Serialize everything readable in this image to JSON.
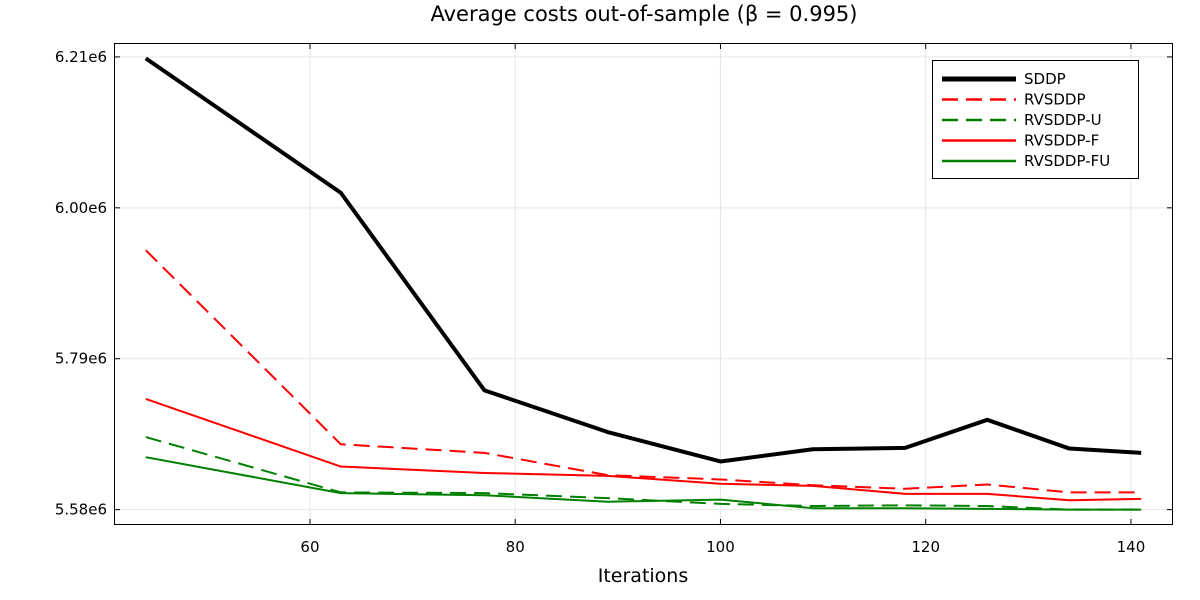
{
  "chart_data": {
    "type": "line",
    "title": "Average costs out-of-sample (β = 0.995)",
    "xlabel": "Iterations",
    "ylabel": "",
    "xlim": [
      41,
      144
    ],
    "ylim": [
      5560000,
      6228000
    ],
    "xticks": [
      60,
      80,
      100,
      120,
      140
    ],
    "xtick_labels": [
      "60",
      "80",
      "100",
      "120",
      "140"
    ],
    "yticks": [
      5580000,
      5790000,
      6000000,
      6210000
    ],
    "ytick_labels": [
      "5.58e6",
      "5.79e6",
      "6.00e6",
      "6.21e6"
    ],
    "grid": true,
    "legend_position": "top-right",
    "x": [
      44,
      63,
      77,
      89,
      100,
      109,
      118,
      126,
      134,
      141
    ],
    "series": [
      {
        "name": "SDDP",
        "color": "#000000",
        "dash": "solid",
        "width": "thick",
        "values": [
          6208000,
          6021000,
          5746000,
          5688000,
          5647000,
          5664000,
          5666000,
          5705000,
          5665000,
          5659000
        ]
      },
      {
        "name": "RVSDDP",
        "color": "#ff0000",
        "dash": "dashed",
        "width": "normal",
        "values": [
          5941000,
          5671000,
          5659000,
          5628000,
          5622000,
          5614000,
          5609000,
          5615000,
          5604000,
          5604000
        ]
      },
      {
        "name": "RVSDDP-U",
        "color": "#008000",
        "dash": "dashed",
        "width": "normal",
        "values": [
          5681000,
          5604000,
          5603000,
          5596000,
          5588000,
          5585000,
          5586000,
          5585000,
          5580000,
          5580000
        ]
      },
      {
        "name": "RVSDDP-F",
        "color": "#ff0000",
        "dash": "solid",
        "width": "normal",
        "values": [
          5734000,
          5640000,
          5631000,
          5627000,
          5616000,
          5613000,
          5602000,
          5602000,
          5593000,
          5595000
        ]
      },
      {
        "name": "RVSDDP-FU",
        "color": "#008000",
        "dash": "solid",
        "width": "normal",
        "values": [
          5653000,
          5603000,
          5600000,
          5591000,
          5594000,
          5582000,
          5582000,
          5581000,
          5580000,
          5580000
        ]
      }
    ]
  }
}
